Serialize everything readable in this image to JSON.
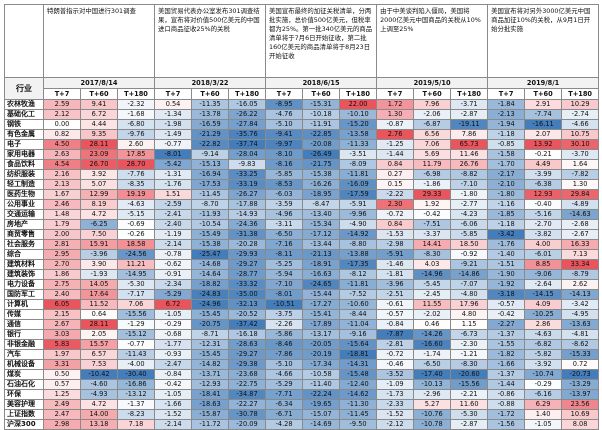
{
  "table": {
    "industry_header": "行业",
    "events": [
      {
        "date": "2017/8/14",
        "desc": "特朗普指示对中国进行301调查"
      },
      {
        "date": "2018/3/22",
        "desc": "美国贸易代表办公室发布301调查结果，宣布将对价值500亿美元的中国进口商品征收25%的关税"
      },
      {
        "date": "2018/6/15",
        "desc": "美国宣布最终的加征关税清单，分两批实施，总价值500亿美元，但税率都为25%。第一批340亿美元的商品清单将于7月6日开始征收，第二批160亿美元的商品清单将于8月23日开始征收"
      },
      {
        "date": "2019/5/10",
        "desc": "由于中美谈判陷入僵局，美国将2000亿美元中国商品的关税从10%上调至25%"
      },
      {
        "date": "2019/8/1",
        "desc": "美国宣布将对另外3000亿美元中国商品加征10%的关税，从9月1日开始分批实施"
      }
    ],
    "subheads": [
      "T+7",
      "T+60",
      "T+180"
    ],
    "rows": [
      {
        "name": "农林牧渔",
        "v": [
          "2.59",
          "9.41",
          "-2.32",
          "0.54",
          "-11.35",
          "-16.05",
          "-8.95",
          "-15.31",
          "22.00",
          "1.72",
          "7.96",
          "-3.71",
          "-1.84",
          "2.91",
          "10.29"
        ]
      },
      {
        "name": "基础化工",
        "v": [
          "2.12",
          "6.72",
          "-1.68",
          "-1.34",
          "-13.78",
          "-26.22",
          "-4.76",
          "-10.18",
          "-10.10",
          "1.30",
          "-2.06",
          "-2.87",
          "-2.13",
          "-7.74",
          "-2.74"
        ]
      },
      {
        "name": "钢铁",
        "v": [
          "0.00",
          "4.44",
          "-6.80",
          "-1.98",
          "-16.59",
          "-27.84",
          "-5.10",
          "-11.91",
          "-15.20",
          "-0.87",
          "-6.87",
          "-19.11",
          "-1.94",
          "-16.11",
          "-4.66"
        ]
      },
      {
        "name": "有色金属",
        "v": [
          "0.82",
          "9.35",
          "-9.76",
          "-1.49",
          "-21.29",
          "-35.76",
          "-9.41",
          "-22.85",
          "-13.58",
          "2.76",
          "6.56",
          "7.86",
          "-1.18",
          "2.07",
          "10.75"
        ]
      },
      {
        "name": "电子",
        "v": [
          "4.50",
          "28.11",
          "2.60",
          "-0.77",
          "-22.82",
          "-37.74",
          "-9.97",
          "-20.08",
          "-11.33",
          "-1.25",
          "7.06",
          "65.73",
          "-0.85",
          "13.92",
          "30.10"
        ]
      },
      {
        "name": "家用电器",
        "v": [
          "2.63",
          "23.09",
          "17.85",
          "-8.01",
          "-9.14",
          "-28.04",
          "-8.10",
          "-26.49",
          "-3.51",
          "-1.44",
          "5.69",
          "11.46",
          "-1.58",
          "-0.21",
          "-3.70"
        ]
      },
      {
        "name": "食品饮料",
        "v": [
          "4.54",
          "26.70",
          "28.70",
          "-5.42",
          "-15.13",
          "-9.83",
          "-8.16",
          "-21.75",
          "-8.09",
          "0.84",
          "11.79",
          "26.76",
          "-1.70",
          "4.49",
          "1.64"
        ]
      },
      {
        "name": "纺织服装",
        "v": [
          "2.16",
          "3.92",
          "-7.76",
          "-1.31",
          "-16.94",
          "-33.25",
          "-5.85",
          "-15.38",
          "-11.81",
          "0.27",
          "-6.98",
          "-8.82",
          "-2.17",
          "-3.99",
          "-7.82"
        ]
      },
      {
        "name": "轻工制造",
        "v": [
          "2.13",
          "5.07",
          "-8.35",
          "-1.76",
          "-17.53",
          "-33.19",
          "-8.53",
          "-16.26",
          "-16.09",
          "0.15",
          "-1.86",
          "-7.10",
          "-2.10",
          "-6.38",
          "1.30"
        ]
      },
      {
        "name": "医药生物",
        "v": [
          "1.67",
          "12.99",
          "19.19",
          "1.51",
          "-11.45",
          "-26.27",
          "-6.03",
          "-18.95",
          "-17.59",
          "-2.22",
          "29.33",
          "-1.80",
          "-1.80",
          "12.93",
          "29.84"
        ]
      },
      {
        "name": "公用事业",
        "v": [
          "2.46",
          "8.19",
          "-4.63",
          "-2.59",
          "-8.70",
          "-17.88",
          "-3.59",
          "-8.47",
          "-5.91",
          "2.30",
          "1.92",
          "-2.77",
          "-1.16",
          "-0.40",
          "-4.89"
        ]
      },
      {
        "name": "交通运输",
        "v": [
          "1.48",
          "4.72",
          "-5.15",
          "-2.41",
          "-11.93",
          "-14.93",
          "-4.96",
          "-13.40",
          "-9.96",
          "-0.72",
          "-0.42",
          "-4.23",
          "-1.85",
          "-5.16",
          "-14.63"
        ]
      },
      {
        "name": "房地产",
        "v": [
          "1.79",
          "-6.25",
          "-0.69",
          "-2.40",
          "-10.54",
          "-24.36",
          "-3.11",
          "-15.34",
          "-4.90",
          "0.84",
          "-7.51",
          "-6.06",
          "-1.18",
          "-2.70",
          "-2.68"
        ]
      },
      {
        "name": "商贸零售",
        "v": [
          "2.00",
          "7.50",
          "-0.26",
          "-1.19",
          "-15.49",
          "-31.38",
          "-6.50",
          "-17.12",
          "-14.92",
          "-1.53",
          "-3.37",
          "-5.85",
          "-3.42",
          "-3.82",
          "-2.67"
        ]
      },
      {
        "name": "社会服务",
        "v": [
          "2.81",
          "15.91",
          "18.58",
          "-2.14",
          "-15.38",
          "-20.28",
          "-7.16",
          "-13.44",
          "-8.80",
          "-2.98",
          "14.41",
          "18.50",
          "-1.76",
          "4.00",
          "16.33"
        ]
      },
      {
        "name": "综合",
        "v": [
          "2.95",
          "-3.96",
          "-24.56",
          "-0.78",
          "-25.47",
          "-29.93",
          "-8.11",
          "-21.13",
          "-13.88",
          "-5.91",
          "-8.30",
          "-0.92",
          "-1.40",
          "-6.01",
          "7.13"
        ]
      },
      {
        "name": "建筑材料",
        "v": [
          "2.70",
          "3.90",
          "11.21",
          "-0.62",
          "-14.68",
          "-29.27",
          "-5.25",
          "-18.91",
          "-17.35",
          "-1.46",
          "4.03",
          "-9.21",
          "-1.51",
          "8.85",
          "33.34"
        ]
      },
      {
        "name": "建筑装饰",
        "v": [
          "1.86",
          "-1.93",
          "-14.95",
          "-0.91",
          "-14.64",
          "-28.77",
          "-5.94",
          "-16.63",
          "-8.12",
          "-1.81",
          "-14.96",
          "-14.86",
          "-1.90",
          "-9.06",
          "-8.79"
        ]
      },
      {
        "name": "电力设备",
        "v": [
          "2.75",
          "14.05",
          "-5.30",
          "-2.34",
          "-18.82",
          "-33.32",
          "-7.10",
          "-24.65",
          "-11.81",
          "-3.96",
          "-5.45",
          "-7.07",
          "-1.92",
          "-2.64",
          "2.62"
        ]
      },
      {
        "name": "国防军工",
        "v": [
          "2.40",
          "17.64",
          "-7.17",
          "-5.29",
          "-24.83",
          "-35.00",
          "-8.01",
          "-15.44",
          "-7.52",
          "-2.51",
          "-2.45",
          "-4.80",
          "-3.18",
          "-14.15",
          "-14.13"
        ]
      },
      {
        "name": "计算机",
        "v": [
          "6.05",
          "11.52",
          "7.06",
          "6.72",
          "-24.96",
          "-32.13",
          "-10.51",
          "-17.27",
          "-10.60",
          "-0.61",
          "11.55",
          "17.96",
          "-0.57",
          "4.09",
          "-3.42"
        ]
      },
      {
        "name": "传媒",
        "v": [
          "2.15",
          "0.64",
          "-15.56",
          "-1.05",
          "-15.45",
          "-20.52",
          "-3.75",
          "-15.41",
          "-8.44",
          "-0.57",
          "-2.02",
          "4.80",
          "-0.42",
          "-10.25",
          "-4.95"
        ]
      },
      {
        "name": "通信",
        "v": [
          "2.67",
          "28.11",
          "-1.29",
          "-0.29",
          "-20.75",
          "-37.42",
          "-2.26",
          "-17.89",
          "-11.04",
          "-0.84",
          "0.46",
          "1.15",
          "-2.27",
          "2.86",
          "-13.63"
        ]
      },
      {
        "name": "银行",
        "v": [
          "3.03",
          "2.05",
          "-15.12",
          "-0.68",
          "-8.71",
          "-16.18",
          "-5.86",
          "-13.17",
          "-9.16",
          "-7.87",
          "-14.26",
          "-6.73",
          "-1.37",
          "-4.63",
          "-4.81"
        ]
      },
      {
        "name": "非银金融",
        "v": [
          "5.83",
          "15.57",
          "-0.77",
          "-1.77",
          "-12.31",
          "-28.63",
          "-8.46",
          "-20.05",
          "-15.64",
          "-2.81",
          "-16.60",
          "-2.30",
          "-1.55",
          "-6.82",
          "-8.62"
        ]
      },
      {
        "name": "汽车",
        "v": [
          "1.97",
          "6.57",
          "-11.43",
          "-0.93",
          "-15.45",
          "-29.27",
          "-7.86",
          "-20.19",
          "-18.81",
          "-0.72",
          "-1.74",
          "-1.21",
          "-1.82",
          "-5.82",
          "-15.33"
        ]
      },
      {
        "name": "机械设备",
        "v": [
          "3.31",
          "7.53",
          "-4.00",
          "-2.47",
          "-14.82",
          "-29.38",
          "-5.10",
          "-17.34",
          "-14.31",
          "-0.46",
          "-6.50",
          "-8.30",
          "-1.66",
          "-3.92",
          "0.72"
        ]
      },
      {
        "name": "煤炭",
        "v": [
          "0.50",
          "-10.42",
          "-30.40",
          "-0.84",
          "-13.71",
          "-23.68",
          "-4.66",
          "-10.58",
          "-15.48",
          "-3.52",
          "-17.40",
          "-20.60",
          "-1.37",
          "-10.74",
          "-20.73"
        ]
      },
      {
        "name": "石油石化",
        "v": [
          "0.57",
          "-4.60",
          "-16.86",
          "-0.42",
          "-12.93",
          "-22.75",
          "-5.29",
          "-11.40",
          "-12.40",
          "-1.09",
          "-10.13",
          "-15.56",
          "-1.44",
          "-0.29",
          "-13.29"
        ]
      },
      {
        "name": "环保",
        "v": [
          "1.25",
          "-4.93",
          "-13.12",
          "-1.05",
          "-18.41",
          "-34.87",
          "-7.71",
          "-22.24",
          "-14.62",
          "-1.73",
          "-2.96",
          "-2.21",
          "-0.86",
          "-6.16",
          "-13.97"
        ]
      },
      {
        "name": "美容护理",
        "v": [
          "2.49",
          "4.72",
          "-1.37",
          "-1.66",
          "-18.63",
          "-22.27",
          "-6.34",
          "-19.65",
          "-11.30",
          "-2.33",
          "5.27",
          "11.60",
          "-0.88",
          "6.29",
          "23.56"
        ]
      },
      {
        "name": "上证指数",
        "v": [
          "2.47",
          "14.00",
          "-8.23",
          "-1.52",
          "-15.87",
          "-30.78",
          "-6.71",
          "-15.07",
          "-11.45",
          "-1.52",
          "-10.76",
          "-5.30",
          "-1.72",
          "1.40",
          "10.69"
        ]
      },
      {
        "name": "沪深300",
        "v": [
          "2.98",
          "13.18",
          "7.18",
          "-2.14",
          "-11.72",
          "-20.09",
          "-4.28",
          "-14.69",
          "-9.50",
          "-2.12",
          "-10.78",
          "-2.87",
          "-1.56",
          "-1.05",
          "8.08"
        ]
      }
    ]
  },
  "colors": {
    "positive": "#e8414b",
    "negative": "#2f6fb3",
    "neutral": "#ffffff"
  }
}
